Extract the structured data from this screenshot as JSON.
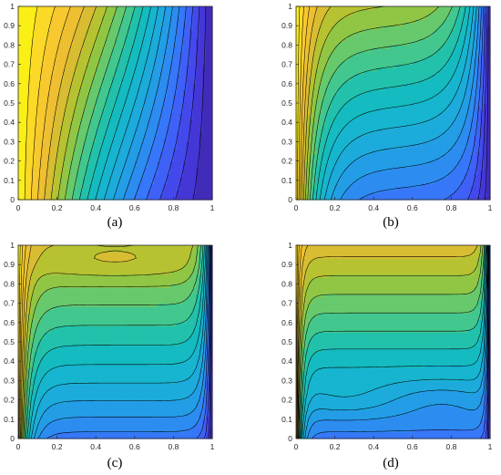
{
  "chart_data": [
    {
      "type": "heatmap",
      "panel_label": "(a)",
      "title": "",
      "xlabel": "",
      "ylabel": "",
      "xlim": [
        0,
        1
      ],
      "ylim": [
        0,
        1
      ],
      "x_ticks": [
        "0",
        "0.2",
        "0.4",
        "0.6",
        "0.8",
        "1"
      ],
      "y_ticks": [
        "0",
        "0.1",
        "0.2",
        "0.3",
        "0.4",
        "0.5",
        "0.6",
        "0.7",
        "0.8",
        "0.9",
        "1"
      ],
      "colormap": "parula",
      "contour_levels": 20,
      "contour_line_color": "#000000",
      "pattern": "near-vertical isotherms, slightly S-shaped"
    },
    {
      "type": "heatmap",
      "panel_label": "(b)",
      "title": "",
      "xlabel": "",
      "ylabel": "",
      "xlim": [
        0,
        1
      ],
      "ylim": [
        0,
        1
      ],
      "x_ticks": [
        "0",
        "0.2",
        "0.4",
        "0.6",
        "0.8",
        "1"
      ],
      "y_ticks": [
        "0",
        "0.1",
        "0.2",
        "0.3",
        "0.4",
        "0.5",
        "0.6",
        "0.7",
        "0.8",
        "0.9",
        "1"
      ],
      "colormap": "parula",
      "contour_levels": 20,
      "contour_line_color": "#000000",
      "pattern": "strongly curved isotherms, beginning stratification"
    },
    {
      "type": "heatmap",
      "panel_label": "(c)",
      "title": "",
      "xlabel": "",
      "ylabel": "",
      "xlim": [
        0,
        1
      ],
      "ylim": [
        0,
        1
      ],
      "x_ticks": [
        "0",
        "0.2",
        "0.4",
        "0.6",
        "0.8",
        "1"
      ],
      "y_ticks": [
        "0",
        "0.1",
        "0.2",
        "0.3",
        "0.4",
        "0.5",
        "0.6",
        "0.7",
        "0.8",
        "0.9",
        "1"
      ],
      "colormap": "parula",
      "contour_levels": 20,
      "contour_line_color": "#000000",
      "pattern": "horizontal stratification with thin wall boundary layers"
    },
    {
      "type": "heatmap",
      "panel_label": "(d)",
      "title": "",
      "xlabel": "",
      "ylabel": "",
      "xlim": [
        0,
        1
      ],
      "ylim": [
        0,
        1
      ],
      "x_ticks": [
        "0",
        "0.2",
        "0.4",
        "0.6",
        "0.8",
        "1"
      ],
      "y_ticks": [
        "0",
        "0.1",
        "0.2",
        "0.3",
        "0.4",
        "0.5",
        "0.6",
        "0.7",
        "0.8",
        "0.9",
        "1"
      ],
      "colormap": "parula",
      "contour_levels": 20,
      "contour_line_color": "#000000",
      "pattern": "strong stratification with very thin wall boundary layers"
    }
  ]
}
